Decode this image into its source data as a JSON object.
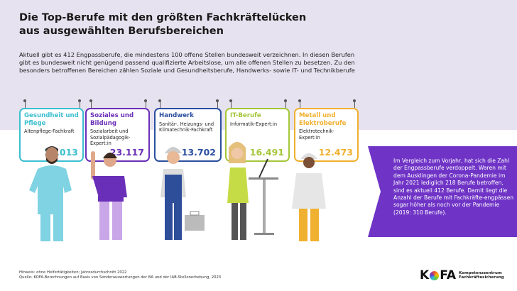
{
  "title": "Die Top-Berufe mit den größten Fachkräftelücken aus ausgewählten Berufsbereichen",
  "intro": "Aktuell gibt es 412 Engpassberufe, die mindestens 100 offene Stellen bundesweit verzeichnen. In diesen Berufen gibt es bundesweit nicht genügend passend qualifizierte Arbeitslose, um alle offenen Stellen zu besetzen. Zu den besonders betroffenen Bereichen zählen Soziale und Gesundheitsberufe, Handwerks- sowie IT- und Technikberufe",
  "cards": [
    {
      "area": "Gesundheit und Pflege",
      "job": "Altenpflege-Fachkraft",
      "value": "18.013",
      "color": "#3cbfd0"
    },
    {
      "area": "Soziales und Bildung",
      "job": "Sozialarbeit und Sozialpädagogik-Expert:in",
      "value": "23.117",
      "color": "#6a2fb8"
    },
    {
      "area": "Handwerk",
      "job": "Sanitär-, Heizungs- und Klimatechnik-Fachkraft",
      "value": "13.702",
      "color": "#2b4fa0"
    },
    {
      "area": "IT-Berufe",
      "job": "Informatik-Expert:in",
      "value": "16.491",
      "color": "#a5c63a"
    },
    {
      "area": "Metall und Elektroberufe",
      "job": "Elektrotechnik-Expert:in",
      "value": "12.473",
      "color": "#f0b030"
    }
  ],
  "banner": "Im Vergleich zum Vorjahr, hat sich die Zahl der Engpassberufe verdoppelt. Waren mit dem Ausklingen der Corona-Pandemie im Jahr 2021 lediglich 218 Berufe betroffen, sind es aktuell 412 Berufe. Damit liegt die Anzahl der Berufe mit Fachkräfte-engpässen sogar höher als noch vor der Pandemie (2019: 310 Berufe).",
  "footer": {
    "note": "Hinweis: ohne Helfertätigkeiten; Jahresdurchschnitt 2022",
    "source": "Quelle: KOFA-Berechnungen auf Basis von Sonderauswertungen der BA und der IAB-Stellenerhebung, 2023"
  },
  "logo": {
    "k": "K",
    "fa": "FA",
    "line1": "Kompetenzzentrum",
    "line2": "Fachkräftesicherung"
  },
  "banner_color": "#6f34c6"
}
